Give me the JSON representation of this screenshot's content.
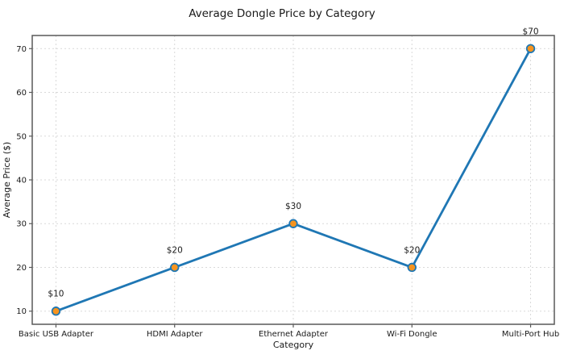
{
  "chart_data": {
    "type": "line",
    "title": "Average Dongle Price by Category",
    "xlabel": "Category",
    "ylabel": "Average Price ($)",
    "categories": [
      "Basic USB Adapter",
      "HDMI Adapter",
      "Ethernet Adapter",
      "Wi-Fi Dongle",
      "Multi-Port Hub"
    ],
    "values": [
      10,
      20,
      30,
      20,
      70
    ],
    "point_labels": [
      "$10",
      "$20",
      "$30",
      "$20",
      "$70"
    ],
    "yticks": [
      10,
      20,
      30,
      40,
      50,
      60,
      70
    ],
    "ylim": [
      7,
      73
    ],
    "grid": true,
    "grid_style": "dashed",
    "colors": {
      "line": "#1f77b4",
      "marker_fill": "#f7941e",
      "marker_edge": "#1f77b4",
      "grid": "#d9d9d9",
      "spine": "#595959",
      "text": "#1a1a1a"
    }
  }
}
